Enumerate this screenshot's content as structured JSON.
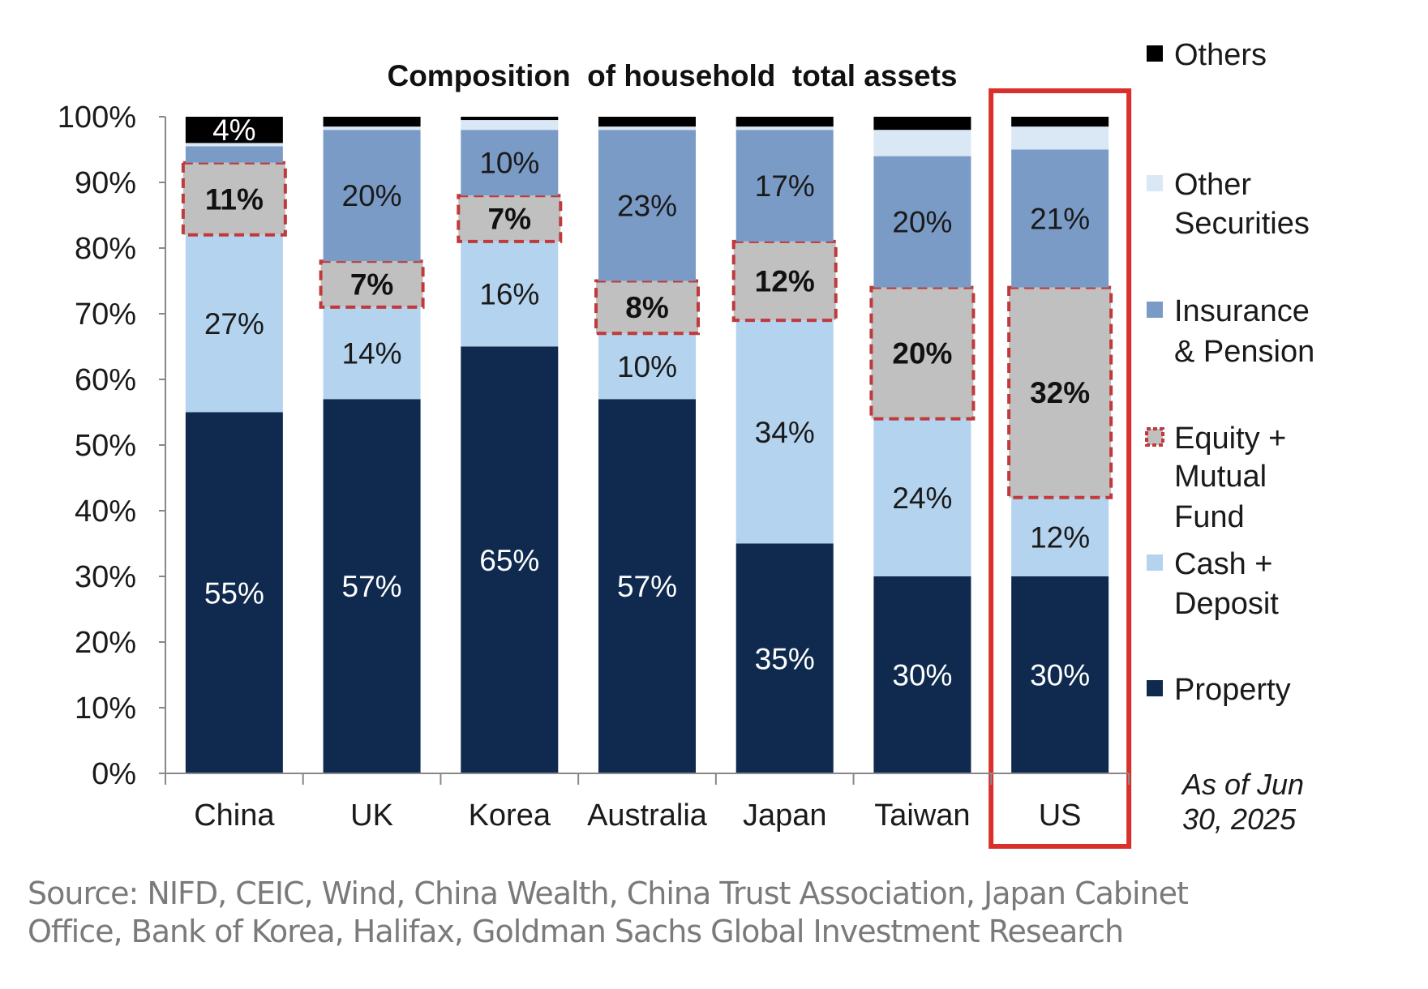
{
  "chart_data": {
    "type": "bar",
    "stacked": true,
    "title": "Composition  of household  total assets",
    "categories": [
      "China",
      "UK",
      "Korea",
      "Australia",
      "Japan",
      "Taiwan",
      "US"
    ],
    "ylim": [
      0,
      100
    ],
    "yticks": [
      "0%",
      "10%",
      "20%",
      "30%",
      "40%",
      "50%",
      "60%",
      "70%",
      "80%",
      "90%",
      "100%"
    ],
    "grid": false,
    "legend_position": "right",
    "highlighted_category": "US",
    "series": [
      {
        "name": "Property",
        "color": "#0f2a4e",
        "label_color": "#ffffff",
        "values": [
          55,
          57,
          65,
          57,
          35,
          30,
          30
        ],
        "labels": [
          "55%",
          "57%",
          "65%",
          "57%",
          "35%",
          "30%",
          "30%"
        ]
      },
      {
        "name": "Cash + Deposit",
        "color": "#b4d3ee",
        "label_color": "#1a1a1a",
        "values": [
          27,
          14,
          16,
          10,
          34,
          24,
          12
        ],
        "labels": [
          "27%",
          "14%",
          "16%",
          "10%",
          "34%",
          "24%",
          "12%"
        ]
      },
      {
        "name": "Equity + Mutual Fund",
        "color": "#c0c0c0",
        "label_color": "#111111",
        "border_color": "#c0393b",
        "values": [
          11,
          7,
          7,
          8,
          12,
          20,
          32
        ],
        "labels": [
          "11%",
          "7%",
          "7%",
          "8%",
          "12%",
          "20%",
          "32%"
        ]
      },
      {
        "name": "Insurance & Pension",
        "color": "#7b9bc7",
        "label_color": "#1a1a1a",
        "values": [
          2.5,
          20,
          10,
          23,
          17,
          20,
          21
        ],
        "labels": [
          "",
          "20%",
          "10%",
          "23%",
          "17%",
          "20%",
          "21%"
        ]
      },
      {
        "name": "Other Securities",
        "color": "#dae8f6",
        "label_color": "#1a1a1a",
        "values": [
          0.5,
          0.5,
          1.5,
          0.5,
          0.5,
          4,
          3.5
        ],
        "labels": [
          "",
          "",
          "",
          "",
          "",
          "",
          ""
        ]
      },
      {
        "name": "Others",
        "color": "#000000",
        "label_color": "#ffffff",
        "values": [
          4,
          1.5,
          0.5,
          1.5,
          1.5,
          2,
          1.5
        ],
        "labels": [
          "4%",
          "",
          "",
          "",
          "",
          "",
          ""
        ]
      }
    ],
    "legend": [
      {
        "lines": [
          "Others"
        ],
        "color": "#000000"
      },
      {
        "lines": [
          "Other",
          "Securities"
        ],
        "color": "#dae8f6"
      },
      {
        "lines": [
          "Insurance",
          "& Pension"
        ],
        "color": "#7b9bc7"
      },
      {
        "lines": [
          "Equity +",
          "Mutual",
          "Fund"
        ],
        "color": "#c0c0c0",
        "border": "#c0393b"
      },
      {
        "lines": [
          "Cash +",
          "Deposit"
        ],
        "color": "#b4d3ee"
      },
      {
        "lines": [
          "Property"
        ],
        "color": "#0f2a4e"
      }
    ],
    "annotation": [
      "As of Jun",
      "30, 2025"
    ],
    "highlight_color": "#d9302c"
  },
  "source": [
    "Source: NIFD, CEIC, Wind, China Wealth, China Trust Association, Japan Cabinet",
    "Office, Bank of Korea, Halifax, Goldman Sachs Global Investment Research"
  ]
}
